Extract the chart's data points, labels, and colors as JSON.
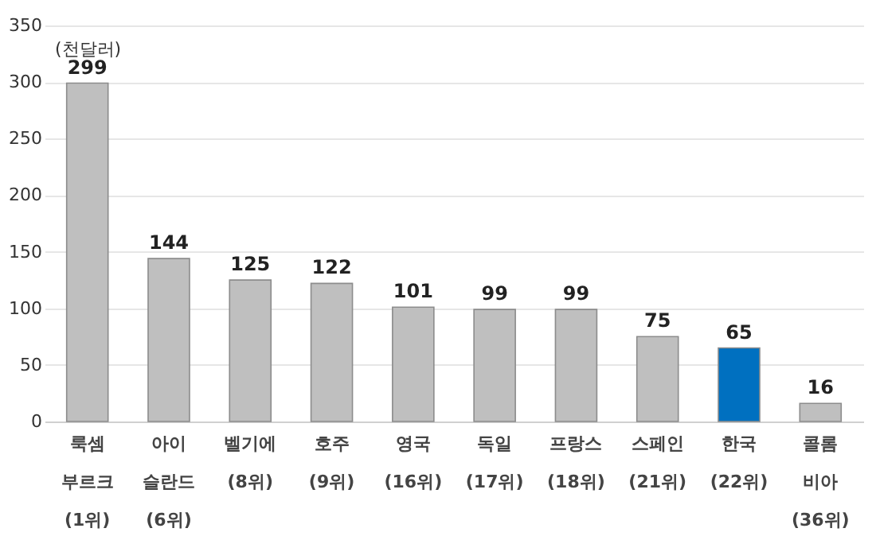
{
  "chart_data": {
    "type": "bar",
    "ylabel": "(천달러)",
    "categories": [
      "룩셈\n부르크\n(1위)",
      "아이\n슬란드\n(6위)",
      "벨기에\n(8위)",
      "호주\n(9위)",
      "영국\n(16위)",
      "독일\n(17위)",
      "프랑스\n(18위)",
      "스페인\n(21위)",
      "한국\n(22위)",
      "콜롬\n비아\n(36위)"
    ],
    "values": [
      299,
      144,
      125,
      122,
      101,
      99,
      99,
      75,
      65,
      16
    ],
    "colors": [
      "#bfbfbf",
      "#bfbfbf",
      "#bfbfbf",
      "#bfbfbf",
      "#bfbfbf",
      "#bfbfbf",
      "#bfbfbf",
      "#bfbfbf",
      "#0070c0",
      "#bfbfbf"
    ],
    "ylim": [
      0,
      350
    ],
    "yticks": [
      0,
      50,
      100,
      150,
      200,
      250,
      300,
      350
    ],
    "grid": "y",
    "data_labels": true
  }
}
